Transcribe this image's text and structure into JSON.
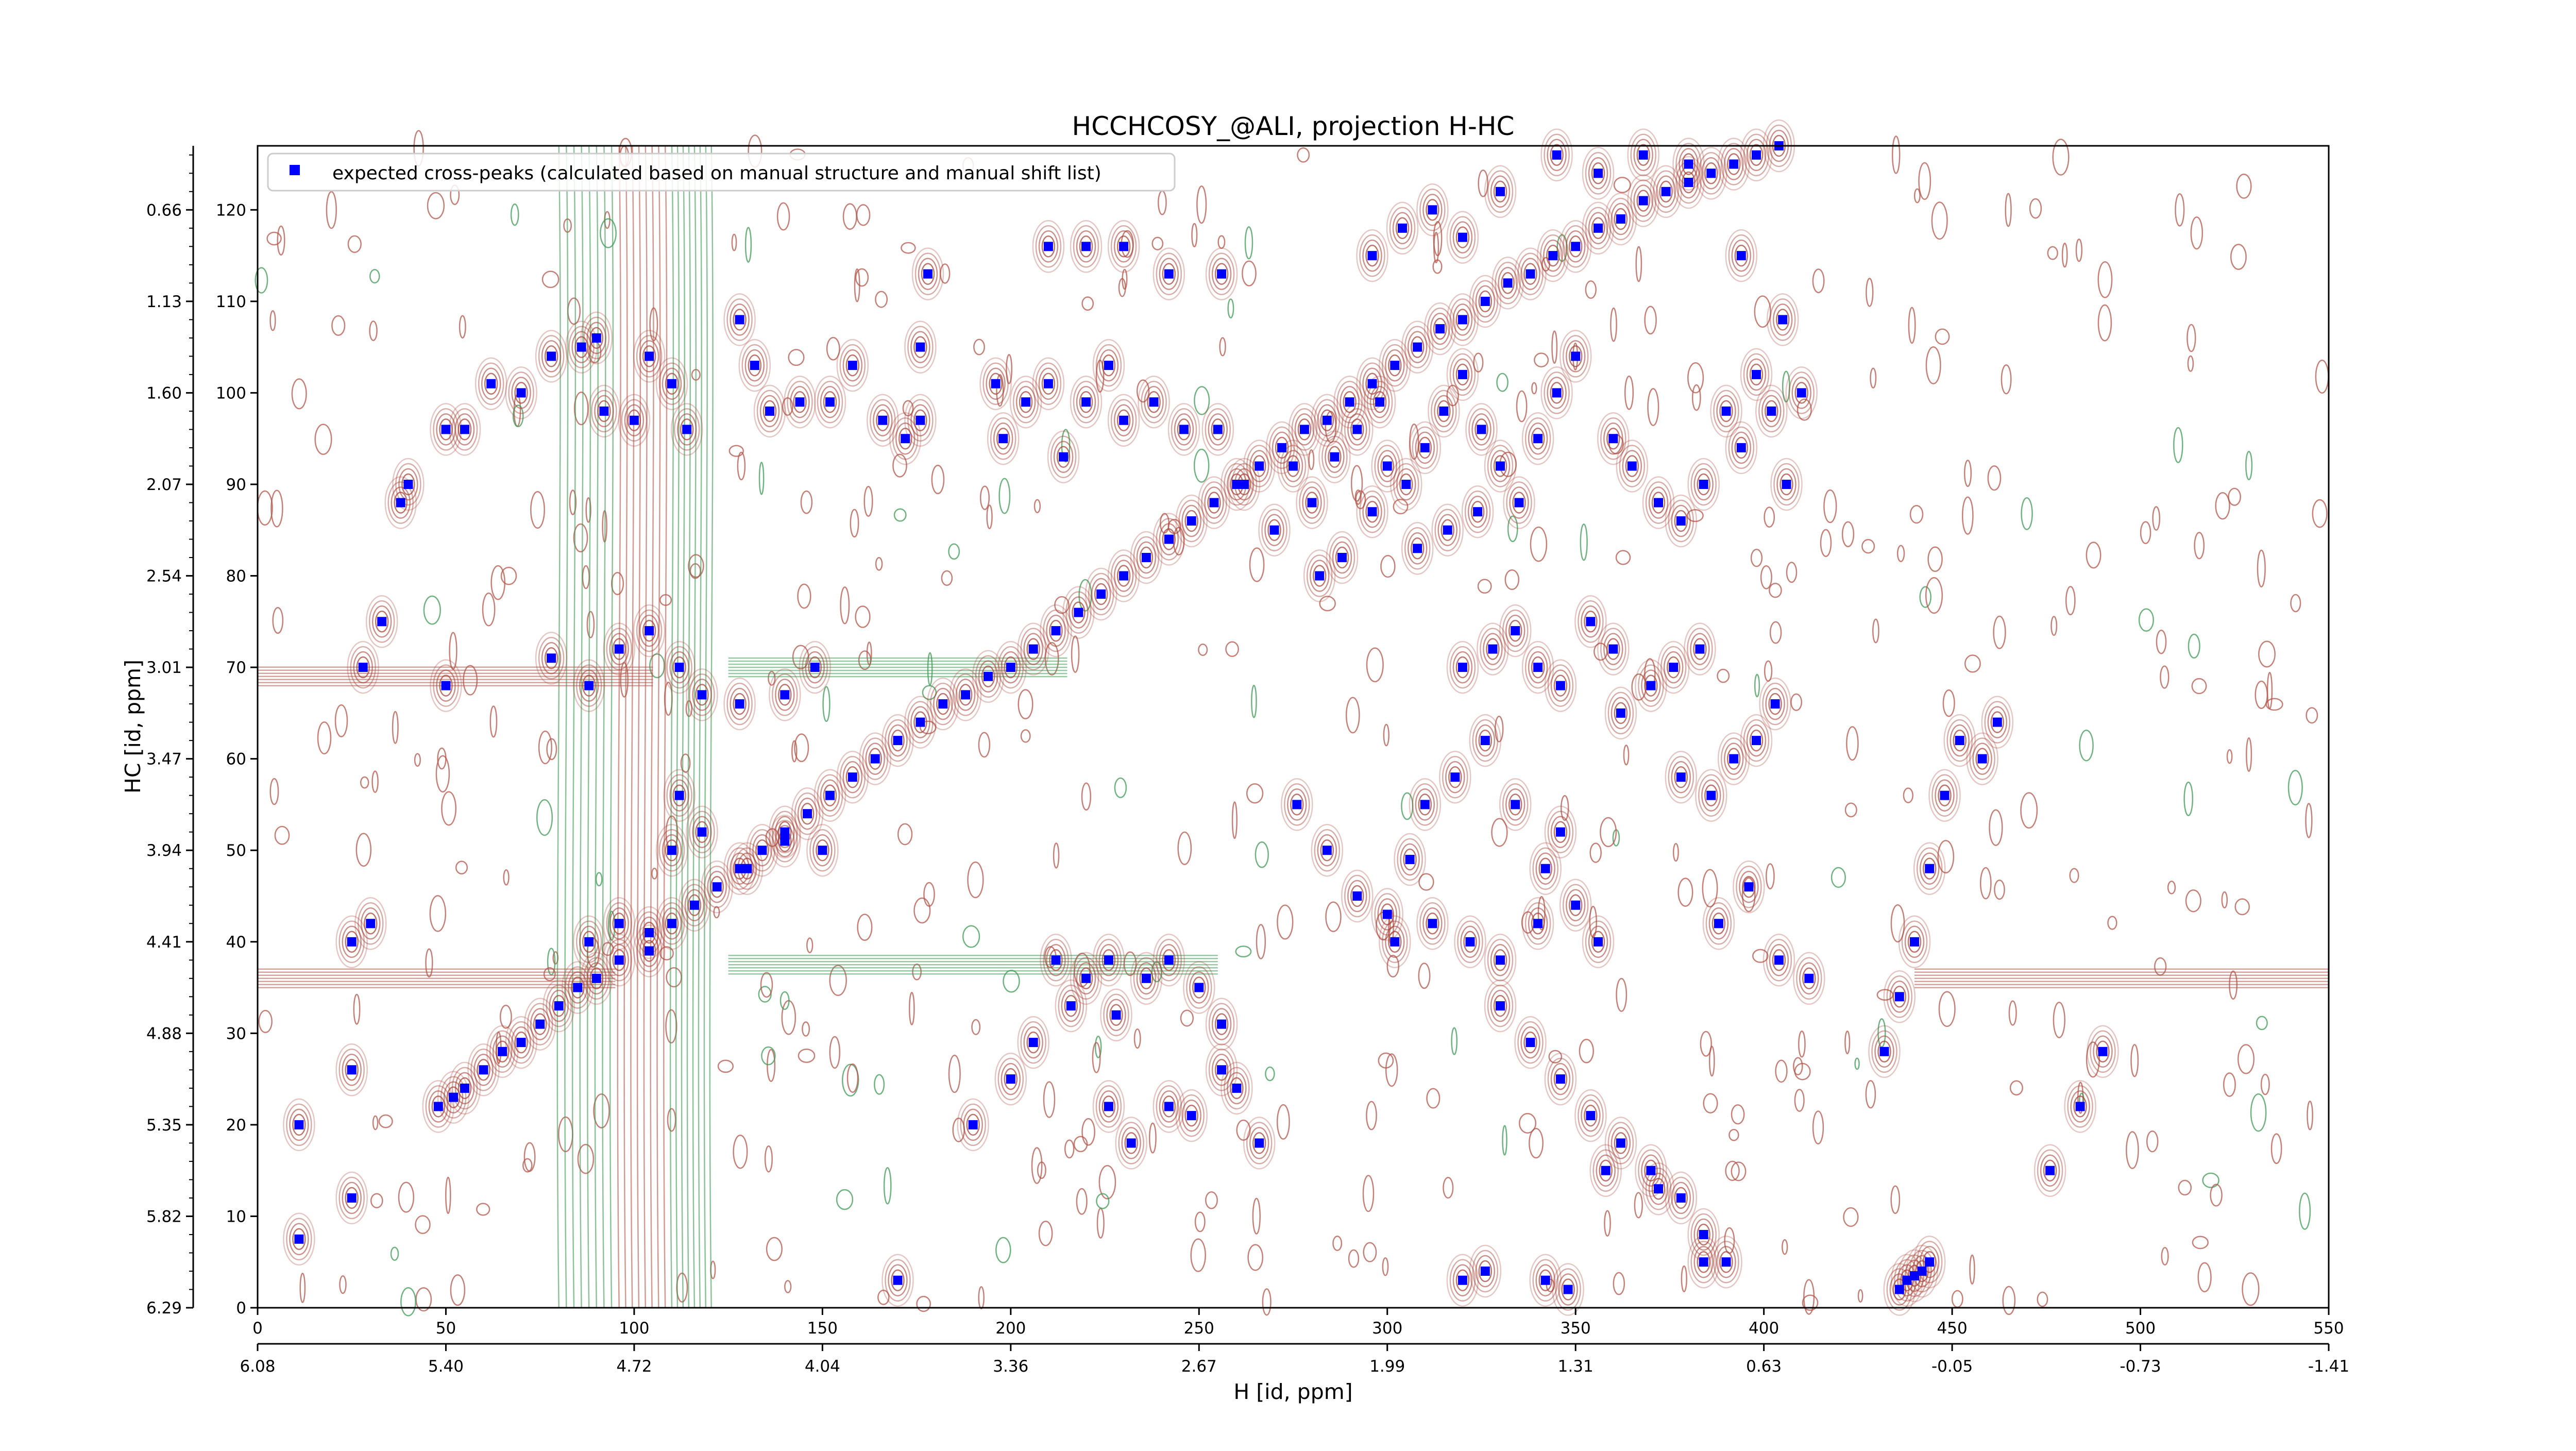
{
  "chart_data": {
    "type": "scatter",
    "title": "HCCHCOSY_@ALI, projection H-HC",
    "xlabel": "H [id, ppm]",
    "ylabel": "HC [id, ppm]",
    "x_range": [
      0,
      550
    ],
    "y_range": [
      0,
      127
    ],
    "x_ticks_index": [
      "0",
      "50",
      "100",
      "150",
      "200",
      "250",
      "300",
      "350",
      "400",
      "450",
      "500",
      "550"
    ],
    "x_ticks_ppm": [
      "6.08",
      "5.40",
      "4.72",
      "4.04",
      "3.36",
      "2.67",
      "1.99",
      "1.31",
      "0.63",
      "-0.05",
      "-0.73",
      "-1.41"
    ],
    "y_ticks_index": [
      "0",
      "10",
      "20",
      "30",
      "40",
      "50",
      "60",
      "70",
      "80",
      "90",
      "100",
      "110",
      "120"
    ],
    "y_ticks_ppm": [
      "6.29",
      "5.82",
      "5.35",
      "4.88",
      "4.41",
      "3.94",
      "3.47",
      "3.01",
      "2.54",
      "2.07",
      "1.60",
      "1.13",
      "0.66"
    ],
    "legend_position": "top-left",
    "series": [
      {
        "name": "expected cross-peaks (calculated based on manual structure and manual shift list)",
        "color": "#0000ff",
        "marker": "square",
        "points": [
          [
            11,
            7.5
          ],
          [
            11,
            20
          ],
          [
            25,
            12
          ],
          [
            25,
            26
          ],
          [
            25,
            40
          ],
          [
            30,
            42
          ],
          [
            33,
            75
          ],
          [
            38,
            88
          ],
          [
            40,
            90
          ],
          [
            48,
            22
          ],
          [
            52,
            23
          ],
          [
            55,
            24
          ],
          [
            60,
            26
          ],
          [
            65,
            28
          ],
          [
            70,
            29
          ],
          [
            75,
            31
          ],
          [
            80,
            33
          ],
          [
            85,
            35
          ],
          [
            90,
            36
          ],
          [
            96,
            38
          ],
          [
            104,
            41
          ],
          [
            110,
            42
          ],
          [
            116,
            44
          ],
          [
            122,
            46
          ],
          [
            128,
            48
          ],
          [
            134,
            50
          ],
          [
            140,
            52
          ],
          [
            146,
            54
          ],
          [
            152,
            56
          ],
          [
            158,
            58
          ],
          [
            164,
            60
          ],
          [
            170,
            62
          ],
          [
            176,
            64
          ],
          [
            182,
            66
          ],
          [
            188,
            67
          ],
          [
            194,
            69
          ],
          [
            200,
            70
          ],
          [
            206,
            72
          ],
          [
            212,
            74
          ],
          [
            218,
            76
          ],
          [
            224,
            78
          ],
          [
            230,
            80
          ],
          [
            236,
            82
          ],
          [
            242,
            84
          ],
          [
            248,
            86
          ],
          [
            254,
            88
          ],
          [
            260,
            90
          ],
          [
            266,
            92
          ],
          [
            272,
            94
          ],
          [
            278,
            96
          ],
          [
            284,
            97
          ],
          [
            290,
            99
          ],
          [
            296,
            101
          ],
          [
            302,
            103
          ],
          [
            308,
            105
          ],
          [
            314,
            107
          ],
          [
            320,
            108
          ],
          [
            326,
            110
          ],
          [
            332,
            112
          ],
          [
            338,
            113
          ],
          [
            344,
            115
          ],
          [
            350,
            116
          ],
          [
            356,
            118
          ],
          [
            362,
            119
          ],
          [
            368,
            121
          ],
          [
            374,
            122
          ],
          [
            380,
            123
          ],
          [
            386,
            124
          ],
          [
            392,
            125
          ],
          [
            398,
            126
          ],
          [
            404,
            127
          ],
          [
            50,
            96
          ],
          [
            55,
            96
          ],
          [
            62,
            101
          ],
          [
            70,
            100
          ],
          [
            78,
            104
          ],
          [
            86,
            105
          ],
          [
            90,
            106
          ],
          [
            92,
            98
          ],
          [
            100,
            97
          ],
          [
            104,
            104
          ],
          [
            110,
            101
          ],
          [
            114,
            96
          ],
          [
            128,
            108
          ],
          [
            132,
            103
          ],
          [
            136,
            98
          ],
          [
            144,
            99
          ],
          [
            152,
            99
          ],
          [
            158,
            103
          ],
          [
            166,
            97
          ],
          [
            172,
            95
          ],
          [
            176,
            97
          ],
          [
            176,
            105
          ],
          [
            178,
            113
          ],
          [
            196,
            101
          ],
          [
            198,
            95
          ],
          [
            204,
            99
          ],
          [
            210,
            101
          ],
          [
            214,
            93
          ],
          [
            220,
            99
          ],
          [
            226,
            103
          ],
          [
            230,
            97
          ],
          [
            238,
            99
          ],
          [
            210,
            116
          ],
          [
            220,
            116
          ],
          [
            230,
            116
          ],
          [
            242,
            113
          ],
          [
            256,
            113
          ],
          [
            246,
            96
          ],
          [
            255,
            96
          ],
          [
            262,
            90
          ],
          [
            270,
            85
          ],
          [
            275,
            92
          ],
          [
            280,
            88
          ],
          [
            286,
            93
          ],
          [
            292,
            96
          ],
          [
            298,
            99
          ],
          [
            300,
            92
          ],
          [
            305,
            90
          ],
          [
            310,
            94
          ],
          [
            315,
            98
          ],
          [
            320,
            102
          ],
          [
            325,
            96
          ],
          [
            330,
            92
          ],
          [
            335,
            88
          ],
          [
            340,
            95
          ],
          [
            345,
            100
          ],
          [
            350,
            104
          ],
          [
            308,
            83
          ],
          [
            316,
            85
          ],
          [
            324,
            87
          ],
          [
            296,
            87
          ],
          [
            288,
            82
          ],
          [
            282,
            80
          ],
          [
            360,
            95
          ],
          [
            365,
            92
          ],
          [
            372,
            88
          ],
          [
            378,
            86
          ],
          [
            384,
            90
          ],
          [
            390,
            98
          ],
          [
            394,
            94
          ],
          [
            398,
            102
          ],
          [
            402,
            98
          ],
          [
            406,
            90
          ],
          [
            410,
            100
          ],
          [
            296,
            115
          ],
          [
            304,
            118
          ],
          [
            312,
            120
          ],
          [
            320,
            117
          ],
          [
            330,
            122
          ],
          [
            345,
            126
          ],
          [
            356,
            124
          ],
          [
            368,
            126
          ],
          [
            380,
            125
          ],
          [
            394,
            115
          ],
          [
            405,
            108
          ],
          [
            28,
            70
          ],
          [
            50,
            68
          ],
          [
            78,
            71
          ],
          [
            88,
            68
          ],
          [
            96,
            72
          ],
          [
            104,
            74
          ],
          [
            112,
            70
          ],
          [
            118,
            67
          ],
          [
            128,
            66
          ],
          [
            140,
            67
          ],
          [
            148,
            70
          ],
          [
            88,
            40
          ],
          [
            96,
            42
          ],
          [
            104,
            39
          ],
          [
            110,
            50
          ],
          [
            112,
            56
          ],
          [
            118,
            52
          ],
          [
            130,
            48
          ],
          [
            140,
            51
          ],
          [
            150,
            50
          ],
          [
            212,
            38
          ],
          [
            216,
            33
          ],
          [
            220,
            36
          ],
          [
            226,
            38
          ],
          [
            228,
            32
          ],
          [
            236,
            36
          ],
          [
            242,
            38
          ],
          [
            250,
            35
          ],
          [
            256,
            31
          ],
          [
            260,
            24
          ],
          [
            266,
            18
          ],
          [
            226,
            22
          ],
          [
            232,
            18
          ],
          [
            242,
            22
          ],
          [
            248,
            21
          ],
          [
            256,
            26
          ],
          [
            170,
            3
          ],
          [
            190,
            20
          ],
          [
            200,
            25
          ],
          [
            206,
            29
          ],
          [
            276,
            55
          ],
          [
            284,
            50
          ],
          [
            292,
            45
          ],
          [
            300,
            43
          ],
          [
            306,
            49
          ],
          [
            310,
            55
          ],
          [
            318,
            58
          ],
          [
            326,
            62
          ],
          [
            334,
            55
          ],
          [
            342,
            48
          ],
          [
            346,
            52
          ],
          [
            302,
            40
          ],
          [
            312,
            42
          ],
          [
            322,
            40
          ],
          [
            330,
            38
          ],
          [
            340,
            42
          ],
          [
            350,
            44
          ],
          [
            356,
            40
          ],
          [
            320,
            70
          ],
          [
            328,
            72
          ],
          [
            334,
            74
          ],
          [
            340,
            70
          ],
          [
            346,
            68
          ],
          [
            354,
            75
          ],
          [
            360,
            72
          ],
          [
            362,
            65
          ],
          [
            370,
            68
          ],
          [
            376,
            70
          ],
          [
            383,
            72
          ],
          [
            378,
            58
          ],
          [
            386,
            56
          ],
          [
            392,
            60
          ],
          [
            398,
            62
          ],
          [
            403,
            66
          ],
          [
            330,
            33
          ],
          [
            338,
            29
          ],
          [
            346,
            25
          ],
          [
            354,
            21
          ],
          [
            362,
            18
          ],
          [
            370,
            15
          ],
          [
            378,
            12
          ],
          [
            384,
            8
          ],
          [
            390,
            5
          ],
          [
            320,
            3
          ],
          [
            326,
            4
          ],
          [
            342,
            3
          ],
          [
            348,
            2
          ],
          [
            358,
            15
          ],
          [
            372,
            13
          ],
          [
            384,
            5
          ],
          [
            388,
            42
          ],
          [
            396,
            46
          ],
          [
            404,
            38
          ],
          [
            412,
            36
          ],
          [
            432,
            28
          ],
          [
            436,
            34
          ],
          [
            440,
            40
          ],
          [
            444,
            48
          ],
          [
            448,
            56
          ],
          [
            452,
            62
          ],
          [
            458,
            60
          ],
          [
            462,
            64
          ],
          [
            436,
            2
          ],
          [
            438,
            3
          ],
          [
            440,
            3.5
          ],
          [
            442,
            4
          ],
          [
            444,
            5
          ],
          [
            476,
            15
          ],
          [
            484,
            22
          ],
          [
            490,
            28
          ]
        ]
      }
    ]
  }
}
